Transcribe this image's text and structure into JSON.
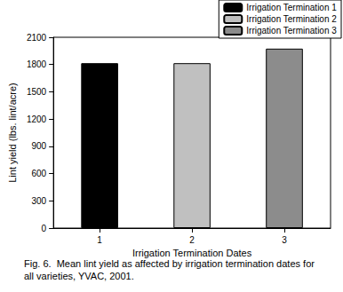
{
  "chart_data": {
    "type": "bar",
    "title": "Fig. 6.  Mean lint yield as affected by irrigation termination dates for all varieties, YVAC, 2001.",
    "x_label": "Irrigation Termination Dates",
    "y_label": "Lint yield (lbs. lint/acre)",
    "categories": [
      "1",
      "2",
      "3"
    ],
    "series": [
      {
        "name": "Irrigation Termination 1",
        "color": "#000000",
        "values": [
          1815,
          null,
          null
        ]
      },
      {
        "name": "Irrigation Termination 2",
        "color": "#c0c0c0",
        "values": [
          null,
          1815,
          null
        ]
      },
      {
        "name": "Irrigation Termination 3",
        "color": "#8c8c8c",
        "values": [
          null,
          null,
          1975
        ]
      }
    ],
    "ylim": [
      0,
      2100
    ],
    "yticks": [
      0,
      300,
      600,
      900,
      1200,
      1500,
      1800,
      2100
    ],
    "grid": false,
    "legend": "top-right"
  }
}
